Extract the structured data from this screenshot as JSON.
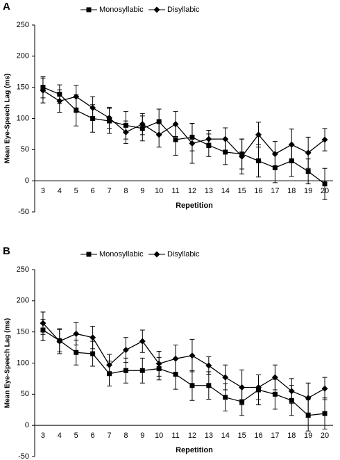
{
  "chart_data": [
    {
      "type": "line",
      "label": "A",
      "y_label": "Mean Eye-Speech Lag (ms)",
      "x_label": "Repetition",
      "categories": [
        "3",
        "4",
        "5",
        "6",
        "7",
        "8",
        "9",
        "10",
        "11",
        "12",
        "13",
        "14",
        "15",
        "16",
        "17",
        "18",
        "19",
        "20"
      ],
      "ylim": [
        -50,
        250
      ],
      "yticks": [
        250,
        200,
        150,
        100,
        50,
        0,
        -50
      ],
      "series": [
        {
          "name": "Monosyllabic",
          "color": "#000000",
          "marker": "square",
          "values": [
            150,
            139,
            113,
            100,
            96,
            89,
            84,
            95,
            66,
            70,
            57,
            46,
            43,
            32,
            21,
            32,
            15,
            -5
          ],
          "errors": [
            17,
            15,
            25,
            22,
            20,
            22,
            20,
            20,
            25,
            22,
            18,
            20,
            24,
            26,
            24,
            25,
            20,
            25
          ]
        },
        {
          "name": "Disyllabic",
          "color": "#000000",
          "marker": "diamond",
          "values": [
            145,
            128,
            135,
            117,
            101,
            78,
            91,
            74,
            91,
            60,
            67,
            67,
            39,
            74,
            43,
            58,
            45,
            66
          ],
          "errors": [
            20,
            18,
            18,
            18,
            17,
            18,
            17,
            20,
            20,
            32,
            14,
            18,
            28,
            20,
            20,
            25,
            25,
            18
          ]
        }
      ]
    },
    {
      "type": "line",
      "label": "B",
      "y_label": "Mean Eye-Speech Lag (ms)",
      "x_label": "Repetition",
      "categories": [
        "3",
        "4",
        "5",
        "6",
        "7",
        "8",
        "9",
        "10",
        "11",
        "12",
        "13",
        "14",
        "15",
        "16",
        "17",
        "18",
        "19",
        "20"
      ],
      "ylim": [
        -50,
        250
      ],
      "yticks": [
        250,
        200,
        150,
        100,
        50,
        0,
        -50
      ],
      "series": [
        {
          "name": "Monosyllabic",
          "color": "#000000",
          "marker": "square",
          "values": [
            153,
            136,
            117,
            115,
            83,
            88,
            88,
            91,
            82,
            64,
            64,
            45,
            38,
            57,
            50,
            40,
            16,
            19
          ],
          "errors": [
            17,
            18,
            20,
            20,
            20,
            20,
            20,
            18,
            24,
            24,
            22,
            22,
            22,
            24,
            24,
            24,
            25,
            25
          ]
        },
        {
          "name": "Disyllabic",
          "color": "#000000",
          "marker": "diamond",
          "values": [
            164,
            135,
            147,
            141,
            97,
            121,
            135,
            99,
            107,
            112,
            96,
            77,
            61,
            61,
            77,
            55,
            44,
            59
          ],
          "errors": [
            18,
            20,
            18,
            18,
            17,
            20,
            18,
            20,
            22,
            26,
            14,
            20,
            28,
            20,
            20,
            20,
            24,
            18
          ]
        }
      ]
    }
  ]
}
